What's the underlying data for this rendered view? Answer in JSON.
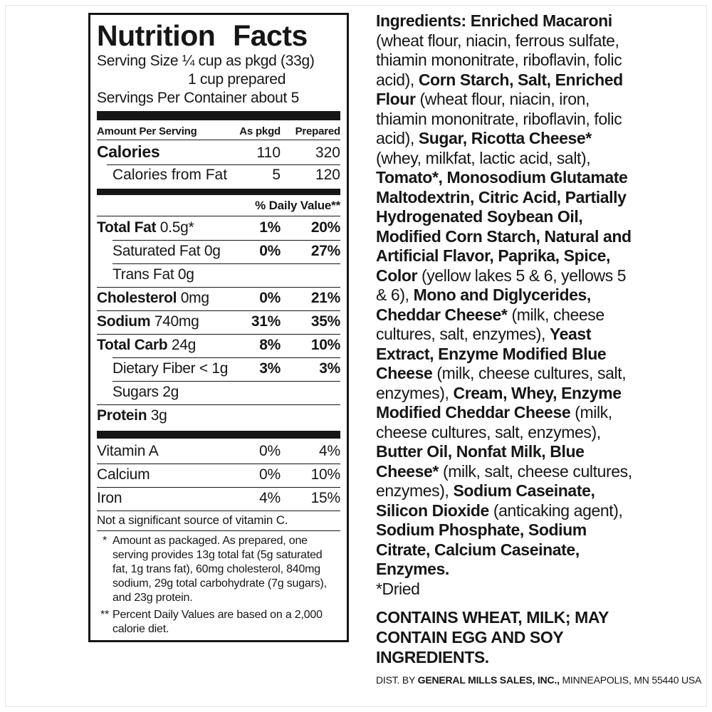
{
  "label": {
    "nutrition": {
      "title": "Nutrition Facts",
      "serving_size_line1": "Serving Size ¼ cup as pkgd (33g)",
      "serving_size_line2": "1 cup prepared",
      "servings_per_container": "Servings Per Container about 5",
      "columns": {
        "label": "Amount Per Serving",
        "pkgd": "As pkgd",
        "prepared": "Prepared"
      },
      "calorie_rows": [
        {
          "name": "Calories",
          "pkgd": "110",
          "prepared": "320",
          "bold": true
        },
        {
          "name": "Calories from Fat",
          "pkgd": "5",
          "prepared": "120",
          "indent": true
        }
      ],
      "daily_value_header": "% Daily Value**",
      "nutrient_rows": [
        {
          "name": "Total Fat",
          "amount": "0.5g*",
          "pkgd": "1%",
          "prepared": "20%",
          "bold": true
        },
        {
          "name": "Saturated Fat",
          "amount": "0g",
          "pkgd": "0%",
          "prepared": "27%",
          "indent": true
        },
        {
          "name": "Trans Fat",
          "amount": "0g",
          "pkgd": "",
          "prepared": "",
          "indent": true
        },
        {
          "name": "Cholesterol",
          "amount": "0mg",
          "pkgd": "0%",
          "prepared": "21%",
          "bold": true
        },
        {
          "name": "Sodium",
          "amount": "740mg",
          "pkgd": "31%",
          "prepared": "35%",
          "bold": true
        },
        {
          "name": "Total Carb",
          "amount": "24g",
          "pkgd": "8%",
          "prepared": "10%",
          "bold": true
        },
        {
          "name": "Dietary Fiber",
          "amount": "< 1g",
          "pkgd": "3%",
          "prepared": "3%",
          "indent": true
        },
        {
          "name": "Sugars",
          "amount": "2g",
          "pkgd": "",
          "prepared": "",
          "indent": true
        },
        {
          "name": "Protein",
          "amount": "3g",
          "pkgd": "",
          "prepared": "",
          "bold": true
        }
      ],
      "vitamin_rows": [
        {
          "name": "Vitamin A",
          "pkgd": "0%",
          "prepared": "4%"
        },
        {
          "name": "Calcium",
          "pkgd": "0%",
          "prepared": "10%"
        },
        {
          "name": "Iron",
          "pkgd": "4%",
          "prepared": "15%"
        }
      ],
      "vitamin_c_note": "Not a significant source of vitamin C.",
      "footnotes": [
        {
          "mark": "*",
          "text": "Amount as packaged. As prepared, one serving provides 13g total fat (5g saturated fat, 1g trans fat), 60mg cholesterol, 840mg sodium, 29g total carbohydrate (7g sugars), and 23g protein."
        },
        {
          "mark": "**",
          "text": "Percent Daily Values are based on a 2,000 calorie diet."
        }
      ]
    },
    "ingredients": {
      "segments": [
        {
          "t": "Ingredients: Enriched Macaroni ",
          "b": true
        },
        {
          "t": "(wheat flour, niacin, ferrous sulfate, thiamin mononitrate, riboflavin, folic acid), ",
          "b": false
        },
        {
          "t": "Corn Starch, Salt, Enriched Flour ",
          "b": true
        },
        {
          "t": "(wheat flour, niacin, iron, thiamin mononitrate, riboflavin, folic acid), ",
          "b": false
        },
        {
          "t": "Sugar, Ricotta Cheese* ",
          "b": true
        },
        {
          "t": "(whey, milkfat, lactic acid, salt), ",
          "b": false
        },
        {
          "t": "Tomato*, Monosodium Glutamate Maltodextrin, Citric Acid, Partially Hydrogenated Soybean Oil, Modified Corn Starch, Natural and Artificial Flavor, Paprika, Spice, Color ",
          "b": true
        },
        {
          "t": "(yellow lakes 5 & 6, yellows 5 & 6), ",
          "b": false
        },
        {
          "t": "Mono and Diglycerides, Cheddar Cheese* ",
          "b": true
        },
        {
          "t": "(milk, cheese cultures, salt, enzymes), ",
          "b": false
        },
        {
          "t": "Yeast Extract, Enzyme Modified Blue Cheese ",
          "b": true
        },
        {
          "t": "(milk, cheese cultures, salt, enzymes), ",
          "b": false
        },
        {
          "t": "Cream, Whey, Enzyme Modified Cheddar Cheese ",
          "b": true
        },
        {
          "t": "(milk, cheese cultures, salt, enzymes), ",
          "b": false
        },
        {
          "t": "Butter Oil, Nonfat Milk, Blue Cheese* ",
          "b": true
        },
        {
          "t": "(milk, salt, cheese cultures, enzymes), ",
          "b": false
        },
        {
          "t": "Sodium Caseinate, Silicon Dioxide ",
          "b": true
        },
        {
          "t": "(anticaking agent), ",
          "b": false
        },
        {
          "t": "Sodium Phosphate, Sodium Citrate, Calcium Caseinate, Enzymes.",
          "b": true
        }
      ],
      "dried_note": "*Dried",
      "contains": "CONTAINS WHEAT, MILK; MAY CONTAIN EGG AND SOY INGREDIENTS.",
      "distributor": [
        {
          "t": "DIST. BY ",
          "b": false
        },
        {
          "t": "GENERAL MILLS SALES, INC.,",
          "b": true
        },
        {
          "t": " MINNEAPOLIS, MN 55440 USA",
          "b": false
        }
      ]
    },
    "colors": {
      "ink": "#161616",
      "paper": "#ffffff"
    }
  }
}
